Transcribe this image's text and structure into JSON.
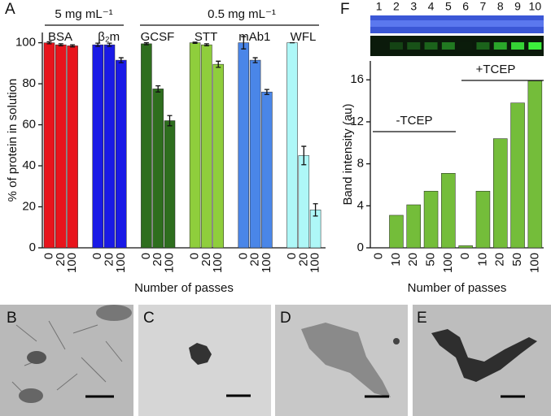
{
  "panels": [
    "A",
    "F",
    "B",
    "C",
    "D",
    "E"
  ],
  "gel": {
    "lanes": [
      "1",
      "2",
      "3",
      "4",
      "5",
      "6",
      "7",
      "8",
      "9",
      "10"
    ]
  },
  "chart_data": [
    {
      "type": "grouped-bar",
      "annotations": [
        "5 mg mL⁻¹",
        "0.5 mg mL⁻¹"
      ],
      "ylabel": "% of protein in solution",
      "xlabel": "Number of passes",
      "categories": [
        "0",
        "20",
        "100"
      ],
      "series": [
        {
          "name": "BSA",
          "color": "#e8141c",
          "values": [
            100,
            99,
            98.5
          ],
          "errors": [
            0.5,
            0.5,
            0.5
          ]
        },
        {
          "name": "β₂m",
          "color": "#1a1ae6",
          "values": [
            99,
            99,
            91.5
          ],
          "errors": [
            0.8,
            0.8,
            1.2
          ]
        },
        {
          "name": "GCSF",
          "color": "#2e6e1e",
          "values": [
            99.5,
            77.5,
            62
          ],
          "errors": [
            0.5,
            1.5,
            2.5
          ]
        },
        {
          "name": "STT",
          "color": "#8fce3c",
          "values": [
            100,
            99,
            89.5
          ],
          "errors": [
            0.3,
            0.5,
            1.5
          ]
        },
        {
          "name": "mAb1",
          "color": "#4a86e8",
          "values": [
            100,
            91.5,
            76
          ],
          "errors": [
            3,
            1.2,
            1.2
          ]
        },
        {
          "name": "WFL",
          "color": "#aef7f7",
          "values": [
            100,
            45,
            18.5
          ],
          "errors": [
            0,
            4.5,
            3
          ]
        }
      ],
      "ylim": [
        0,
        105
      ],
      "yticks": [
        0,
        20,
        40,
        60,
        80,
        100
      ]
    },
    {
      "type": "bar",
      "annotations": [
        "-TCEP",
        "+TCEP"
      ],
      "ylabel": "Band intensity (au)",
      "xlabel": "Number of passes",
      "categories": [
        "0",
        "10",
        "20",
        "50",
        "100",
        "0",
        "10",
        "20",
        "50",
        "100"
      ],
      "values": [
        0,
        3.1,
        4.1,
        5.4,
        7.1,
        0.2,
        5.4,
        10.4,
        13.8,
        15.9
      ],
      "color": "#74bd3a",
      "ylim": [
        0,
        17.8
      ],
      "yticks": [
        0,
        4,
        8,
        12,
        16
      ]
    }
  ]
}
